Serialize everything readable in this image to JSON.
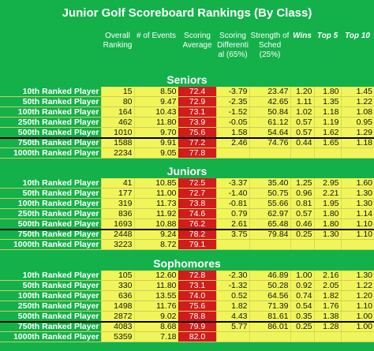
{
  "title": "Junior Golf Scoreboard Rankings (By Class)",
  "headers": [
    {
      "lines": [
        "Overall",
        "Ranking"
      ]
    },
    {
      "lines": [
        "# of Events"
      ]
    },
    {
      "lines": [
        "Scoring",
        "Average"
      ]
    },
    {
      "lines": [
        "Scoring",
        "Differenti",
        "al (65%)"
      ]
    },
    {
      "lines": [
        "Strength of",
        "Sched (25%)"
      ]
    },
    {
      "lines": [
        "Wins"
      ]
    },
    {
      "lines": [
        "Top 5"
      ]
    },
    {
      "lines": [
        "Top 10"
      ]
    }
  ],
  "sections": [
    {
      "name": "Seniors",
      "rows": [
        {
          "label": "10th Ranked Player",
          "values": [
            "15",
            "8.50",
            "72.4",
            "-3.79",
            "23.47",
            "1.20",
            "1.80",
            "1.45"
          ]
        },
        {
          "label": "50th Ranked Player",
          "values": [
            "80",
            "9.47",
            "72.9",
            "-2.35",
            "42.65",
            "1.11",
            "1.35",
            "1.22"
          ]
        },
        {
          "label": "100th Ranked Player",
          "values": [
            "164",
            "10.43",
            "73.1",
            "-1.52",
            "50.84",
            "1.02",
            "1.18",
            "1.08"
          ]
        },
        {
          "label": "250th Ranked Player",
          "values": [
            "462",
            "11.80",
            "73.9",
            "-0.05",
            "61.12",
            "0.57",
            "1.19",
            "0.95"
          ]
        },
        {
          "label": "500th Ranked Player",
          "values": [
            "1010",
            "9.70",
            "75.6",
            "1.58",
            "54.64",
            "0.57",
            "1.62",
            "1.29"
          ]
        },
        {
          "label": "750th Ranked Player",
          "values": [
            "1588",
            "9.91",
            "77.2",
            "2.46",
            "74.76",
            "0.44",
            "1.65",
            "1.18"
          ]
        },
        {
          "label": "1000th Ranked Player",
          "values": [
            "2234",
            "9.05",
            "77.8",
            "",
            "",
            "",
            "",
            ""
          ]
        }
      ]
    },
    {
      "name": "Juniors",
      "rows": [
        {
          "label": "10th Ranked Player",
          "values": [
            "41",
            "10.85",
            "72.5",
            "-3.37",
            "35.40",
            "1.25",
            "2.95",
            "1.60"
          ]
        },
        {
          "label": "50th Ranked Player",
          "values": [
            "177",
            "11.00",
            "72.7",
            "-1.40",
            "50.75",
            "0.96",
            "2.21",
            "1.30"
          ]
        },
        {
          "label": "100th Ranked Player",
          "values": [
            "319",
            "11.73",
            "73.8",
            "-0.81",
            "55.66",
            "0.81",
            "1.95",
            "1.30"
          ]
        },
        {
          "label": "250th Ranked Player",
          "values": [
            "836",
            "11.92",
            "74.6",
            "0.79",
            "62.97",
            "0.57",
            "1.80",
            "1.14"
          ]
        },
        {
          "label": "500th Ranked Player",
          "values": [
            "1693",
            "10.88",
            "76.2",
            "2.61",
            "65.48",
            "0.46",
            "1.80",
            "1.10"
          ]
        },
        {
          "label": "750th Ranked Player",
          "values": [
            "2448",
            "9.24",
            "78.2",
            "3.75",
            "79.84",
            "0.25",
            "1.30",
            "1.10"
          ]
        },
        {
          "label": "1000th Ranked Player",
          "values": [
            "3223",
            "8.72",
            "79.1",
            "",
            "",
            "",
            "",
            ""
          ]
        }
      ]
    },
    {
      "name": "Sophomores",
      "rows": [
        {
          "label": "10th Ranked Player",
          "values": [
            "105",
            "12.60",
            "72.8",
            "-2.30",
            "46.89",
            "1.00",
            "2.16",
            "1.30"
          ]
        },
        {
          "label": "50th Ranked Player",
          "values": [
            "330",
            "11.80",
            "73.1",
            "-1.32",
            "50.28",
            "0.92",
            "2.05",
            "1.22"
          ]
        },
        {
          "label": "100th Ranked Player",
          "values": [
            "636",
            "13.55",
            "74.0",
            "0.52",
            "64.56",
            "0.74",
            "1.82",
            "1.20"
          ]
        },
        {
          "label": "250th Ranked Player",
          "values": [
            "1498",
            "11.76",
            "75.6",
            "1.82",
            "71.39",
            "0.54",
            "1.76",
            "1.10"
          ]
        },
        {
          "label": "500th Ranked Player",
          "values": [
            "2872",
            "9.02",
            "78.8",
            "4.43",
            "81.61",
            "0.35",
            "1.38",
            "1.00"
          ]
        },
        {
          "label": "750th Ranked Player",
          "values": [
            "4083",
            "8.68",
            "79.9",
            "5.77",
            "86.01",
            "0.25",
            "1.28",
            "1.00"
          ]
        },
        {
          "label": "1000th Ranked Player",
          "values": [
            "5359",
            "7.18",
            "82.0",
            "",
            "",
            "",
            "",
            ""
          ]
        }
      ]
    }
  ],
  "colors": {
    "background": "#14b04a",
    "cell": "#f2f55a",
    "scoring": "#d11c1c",
    "divider": "#000000"
  }
}
